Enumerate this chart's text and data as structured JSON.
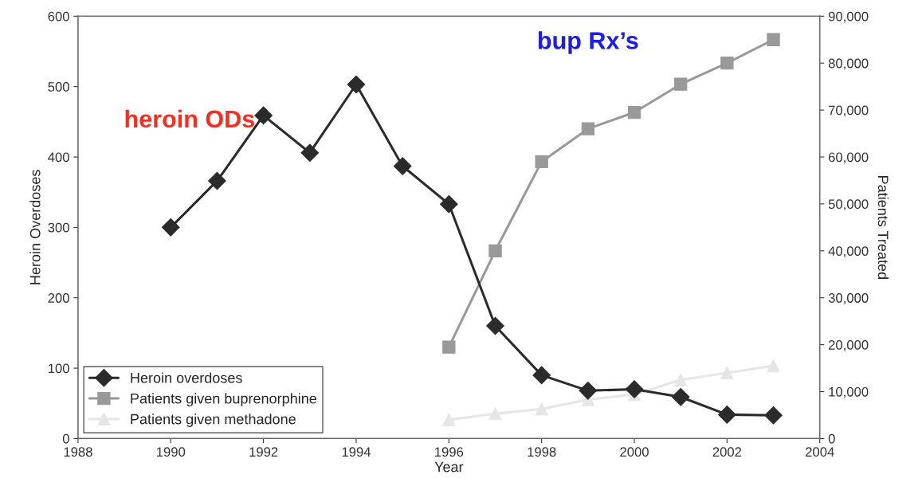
{
  "chart_data": {
    "type": "line",
    "xlabel": "Year",
    "ylabel": "Heroin Overdoses",
    "y2label": "Patients Treated",
    "series": [
      {
        "name": "Heroin overdoses",
        "color": "#2b2b2b",
        "marker": "diamond",
        "x": [
          1990,
          1991,
          1992,
          1993,
          1994,
          1995,
          1996,
          1997,
          1998,
          1999,
          2000,
          2001,
          2002,
          2003
        ],
        "values": [
          300,
          366,
          459,
          406,
          503,
          387,
          333,
          160,
          90,
          68,
          70,
          59,
          34,
          33
        ]
      },
      {
        "name": "Patients given buprenorphine",
        "color": "#999999",
        "marker": "square",
        "axis": "y2",
        "x": [
          1996,
          1997,
          1998,
          1999,
          2000,
          2001,
          2002,
          2003
        ],
        "values": [
          19500,
          40000,
          59000,
          66000,
          69500,
          75500,
          80000,
          85000
        ]
      },
      {
        "name": "Patients given methadone",
        "color": "#e6e6e6",
        "marker": "triangle",
        "axis": "y2",
        "x": [
          1996,
          1997,
          1998,
          1999,
          2000,
          2001,
          2002,
          2003
        ],
        "values": [
          4000,
          5300,
          6300,
          8300,
          9400,
          12500,
          14000,
          15500
        ]
      }
    ],
    "xlim": [
      1988,
      2004
    ],
    "xticks": [
      1988,
      1990,
      1992,
      1994,
      1996,
      1998,
      2000,
      2002,
      2004
    ],
    "ylim": [
      0,
      600
    ],
    "yticks": [
      0,
      100,
      200,
      300,
      400,
      500,
      600
    ],
    "y2lim": [
      0,
      90000
    ],
    "y2ticks": [
      {
        "value": 0,
        "label": "0"
      },
      {
        "value": 10000,
        "label": "10,000"
      },
      {
        "value": 20000,
        "label": "20,000"
      },
      {
        "value": 30000,
        "label": "30,000"
      },
      {
        "value": 40000,
        "label": "40,000"
      },
      {
        "value": 50000,
        "label": "50,000"
      },
      {
        "value": 60000,
        "label": "60,000"
      },
      {
        "value": 70000,
        "label": "70,000"
      },
      {
        "value": 80000,
        "label": "80,000"
      },
      {
        "value": 90000,
        "label": "90,000"
      }
    ],
    "annotations": [
      "heroin ODs",
      "bup Rx’s"
    ],
    "legend": "bottom left",
    "grid": false,
    "line_style": "solid"
  }
}
